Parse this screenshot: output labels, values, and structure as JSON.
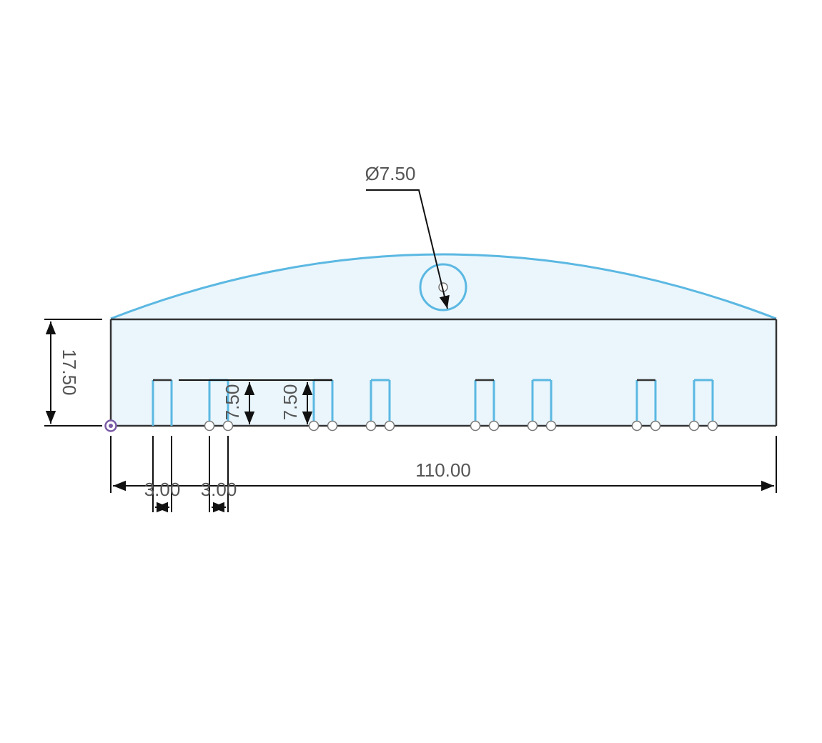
{
  "sketch": {
    "colors": {
      "profile_fill": "#eaf6fc",
      "profile_stroke": "#5bb8e2",
      "edge": "#333333",
      "dimension": "#111111",
      "dimension_text": "#555555",
      "origin_point": "#7a5aa6"
    },
    "dimensions": {
      "hole_diameter": "Ø7.50",
      "total_height": "17.50",
      "slot_height_a": "7.50",
      "slot_height_b": "7.50",
      "slot_width_a": "3.00",
      "slot_width_b": "3.00",
      "total_width": "110.00"
    }
  }
}
